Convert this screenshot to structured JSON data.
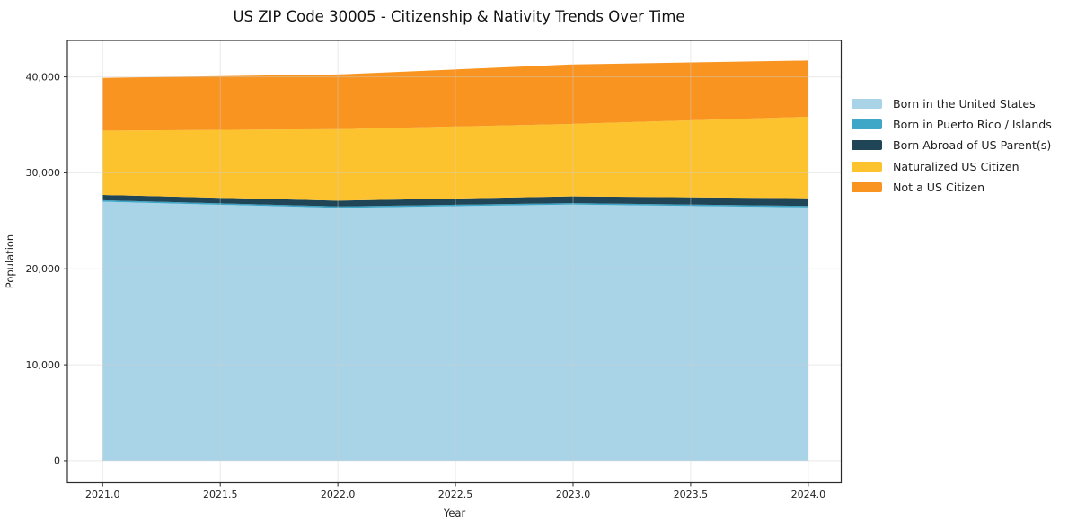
{
  "title": "US ZIP Code 30005 - Citizenship & Nativity Trends Over Time",
  "chart_data": {
    "type": "area",
    "stacked": true,
    "title": "US ZIP Code 30005 - Citizenship & Nativity Trends Over Time",
    "xlabel": "Year",
    "ylabel": "Population",
    "x": [
      2021,
      2022,
      2023,
      2024
    ],
    "series": [
      {
        "name": "Born in the United States",
        "color": "#a9d3e7",
        "values": [
          27000,
          26350,
          26700,
          26400
        ]
      },
      {
        "name": "Born in Puerto Rico / Islands",
        "color": "#3ea6c6",
        "values": [
          150,
          150,
          150,
          150
        ]
      },
      {
        "name": "Born Abroad of US Parent(s)",
        "color": "#1f4557",
        "values": [
          550,
          600,
          700,
          800
        ]
      },
      {
        "name": "Naturalized US Citizen",
        "color": "#fdc32f",
        "values": [
          6700,
          7450,
          7550,
          8500
        ]
      },
      {
        "name": "Not a US Citizen",
        "color": "#f8941f",
        "values": [
          5500,
          5700,
          6200,
          5850
        ]
      }
    ],
    "x_ticks": [
      2021.0,
      2021.5,
      2022.0,
      2022.5,
      2023.0,
      2023.5,
      2024.0
    ],
    "x_tick_labels": [
      "2021.0",
      "2021.5",
      "2022.0",
      "2022.5",
      "2023.0",
      "2023.5",
      "2024.0"
    ],
    "y_ticks": [
      0,
      10000,
      20000,
      30000,
      40000
    ],
    "y_tick_labels": [
      "0",
      "10,000",
      "20,000",
      "30,000",
      "40,000"
    ],
    "xlim": [
      2020.85,
      2024.14
    ],
    "ylim": [
      -2300,
      43800
    ],
    "grid": true,
    "legend_position": "right-outside"
  },
  "colors": {
    "spine": "#2b2b2b",
    "grid": "#cfcfcf",
    "background": "#ffffff"
  }
}
